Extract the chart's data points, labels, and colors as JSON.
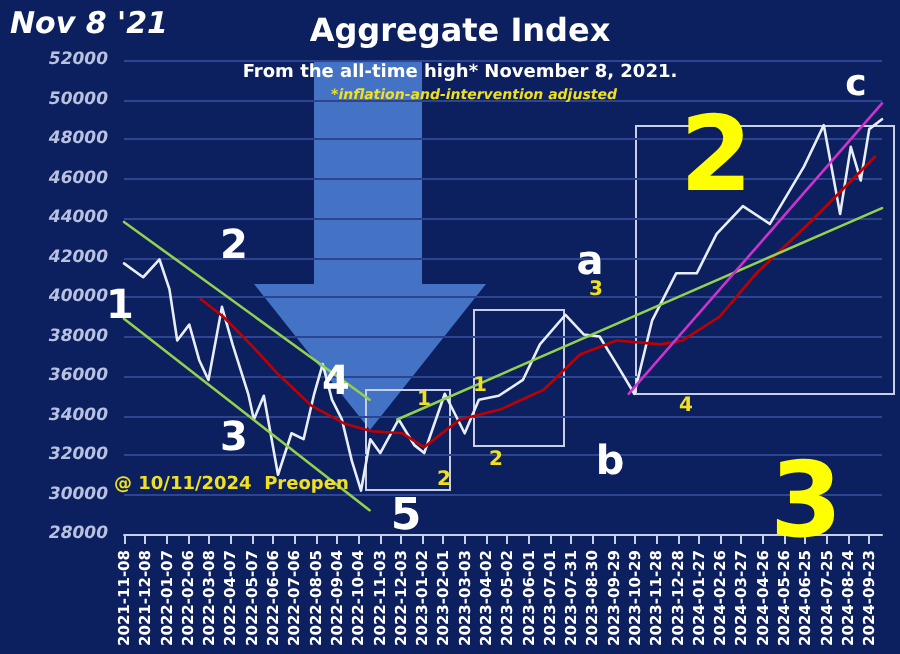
{
  "chart_data": {
    "type": "line",
    "title": "Aggregate Index",
    "subtitle": "From the all-time high* November 8, 2021.",
    "annotations": [
      "Nov 8 '21",
      "*inflation-and-intervention adjusted",
      "@ 10/11/2024  Preopen",
      "2",
      "3",
      "1",
      "2",
      "3",
      "4",
      "5",
      "a",
      "b",
      "c",
      "1",
      "2",
      "1",
      "2",
      "3",
      "4"
    ],
    "xlim": [
      "2021-11-08",
      "2024-10-11"
    ],
    "xticks": [
      "2021-11-08",
      "2021-12-08",
      "2022-01-07",
      "2022-02-06",
      "2022-03-08",
      "2022-04-07",
      "2022-05-07",
      "2022-06-06",
      "2022-07-06",
      "2022-08-05",
      "2022-09-04",
      "2022-10-04",
      "2022-11-03",
      "2022-12-03",
      "2023-01-02",
      "2023-02-01",
      "2023-03-03",
      "2023-04-02",
      "2023-05-02",
      "2023-06-01",
      "2023-07-01",
      "2023-07-31",
      "2023-08-30",
      "2023-09-29",
      "2023-10-29",
      "2023-11-28",
      "2023-12-28",
      "2024-01-27",
      "2024-02-26",
      "2024-03-27",
      "2024-04-26",
      "2024-05-26",
      "2024-06-25",
      "2024-07-25",
      "2024-08-24",
      "2024-09-23"
    ],
    "ylim": [
      28000,
      52000
    ],
    "yticks": [
      28000,
      30000,
      32000,
      34000,
      36000,
      38000,
      40000,
      42000,
      44000,
      46000,
      48000,
      50000,
      52000
    ],
    "grid": "y",
    "marker": "none",
    "line_style": "solid",
    "series": [
      {
        "color": "#e8eef8",
        "x": [
          "2021-11-08",
          "2021-12-05",
          "2021-12-28",
          "2022-01-11",
          "2022-01-22",
          "2022-02-08",
          "2022-02-22",
          "2022-03-07",
          "2022-03-26",
          "2022-04-10",
          "2022-05-02",
          "2022-05-10",
          "2022-05-24",
          "2022-06-13",
          "2022-07-02",
          "2022-07-19",
          "2022-08-03",
          "2022-08-15",
          "2022-08-28",
          "2022-09-11",
          "2022-09-25",
          "2022-10-08",
          "2022-10-21",
          "2022-11-04",
          "2022-11-30",
          "2022-12-22",
          "2023-01-05",
          "2023-02-03",
          "2023-03-03",
          "2023-03-23",
          "2023-04-20",
          "2023-05-24",
          "2023-06-17",
          "2023-07-23",
          "2023-08-18",
          "2023-09-09",
          "2023-10-03",
          "2023-10-28",
          "2023-11-22",
          "2023-12-26",
          "2024-01-24",
          "2024-02-21",
          "2024-03-29",
          "2024-05-06",
          "2024-06-23",
          "2024-07-21",
          "2024-08-13",
          "2024-08-28",
          "2024-09-11",
          "2024-09-23",
          "2024-10-11"
        ],
        "values": [
          41700,
          41000,
          41900,
          40400,
          37800,
          38600,
          36800,
          35800,
          39500,
          37600,
          35100,
          33800,
          35000,
          31000,
          33100,
          32800,
          35100,
          36600,
          34800,
          33800,
          31700,
          30200,
          32800,
          32100,
          33800,
          32500,
          32100,
          35100,
          33100,
          34800,
          35000,
          35800,
          37600,
          39100,
          38100,
          38000,
          36600,
          35100,
          38800,
          41200,
          41200,
          43200,
          44600,
          43700,
          46600,
          48700,
          44200,
          47600,
          45900,
          48500,
          49000
        ]
      },
      {
        "color": "#c00000",
        "x": [
          "2022-02-24",
          "2022-03-28",
          "2022-05-08",
          "2022-06-13",
          "2022-07-30",
          "2022-09-14",
          "2022-10-23",
          "2022-12-05",
          "2023-01-05",
          "2023-02-24",
          "2023-04-22",
          "2023-06-22",
          "2023-08-13",
          "2023-10-03",
          "2023-12-04",
          "2024-01-04",
          "2024-02-25",
          "2024-04-17",
          "2024-07-05",
          "2024-10-01"
        ],
        "values": [
          39900,
          39000,
          37500,
          36100,
          34500,
          33600,
          33200,
          33100,
          32400,
          33800,
          34300,
          35300,
          37100,
          37800,
          37600,
          37800,
          39000,
          41200,
          43900,
          47100
        ]
      },
      {
        "color": "#92d050",
        "x": [
          "2021-11-08",
          "2022-10-20"
        ],
        "values": [
          43800,
          34800
        ]
      },
      {
        "color": "#92d050",
        "x": [
          "2021-11-08",
          "2022-10-20"
        ],
        "values": [
          38900,
          29200
        ]
      },
      {
        "color": "#92d050",
        "x": [
          "2022-11-28",
          "2024-10-11"
        ],
        "values": [
          33800,
          44500
        ]
      },
      {
        "color": "#cc33cc",
        "x": [
          "2023-10-20",
          "2024-10-11"
        ],
        "values": [
          35100,
          49800
        ]
      }
    ]
  }
}
